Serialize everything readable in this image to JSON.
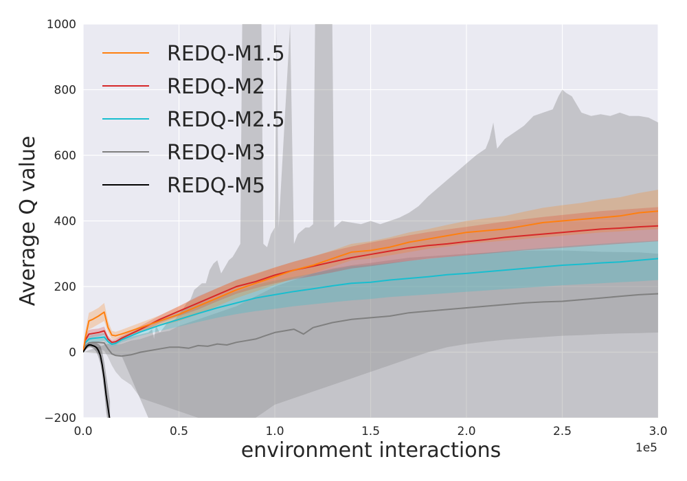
{
  "chart_data": {
    "type": "line",
    "xlabel": "environment interactions",
    "ylabel": "Average Q value",
    "x_offset_label": "1e5",
    "xlim": [
      0,
      3.0
    ],
    "ylim": [
      -200,
      1000
    ],
    "x_ticks": [
      "0.0",
      "0.5",
      "1.0",
      "1.5",
      "2.0",
      "2.5",
      "3.0"
    ],
    "x_tick_values": [
      0,
      0.5,
      1.0,
      1.5,
      2.0,
      2.5,
      3.0
    ],
    "y_ticks": [
      "−200",
      "0",
      "200",
      "400",
      "600",
      "800",
      "1000"
    ],
    "y_tick_values": [
      -200,
      0,
      200,
      400,
      600,
      800,
      1000
    ],
    "grid": true,
    "background": "#eaeaf2",
    "legend_position": "top-left",
    "series": [
      {
        "name": "REDQ-M1.5",
        "color": "#ff7f0e",
        "x": [
          0,
          0.01,
          0.03,
          0.05,
          0.08,
          0.11,
          0.13,
          0.15,
          0.17,
          0.2,
          0.3,
          0.4,
          0.5,
          0.6,
          0.7,
          0.8,
          0.9,
          1.0,
          1.1,
          1.2,
          1.3,
          1.4,
          1.5,
          1.6,
          1.7,
          1.8,
          1.9,
          2.0,
          2.1,
          2.2,
          2.3,
          2.4,
          2.5,
          2.6,
          2.7,
          2.8,
          2.9,
          3.0
        ],
        "y": [
          0,
          40,
          95,
          100,
          110,
          122,
          75,
          52,
          50,
          55,
          75,
          95,
          115,
          140,
          165,
          190,
          210,
          230,
          250,
          265,
          285,
          305,
          310,
          320,
          335,
          345,
          355,
          365,
          370,
          375,
          385,
          395,
          400,
          405,
          410,
          415,
          425,
          430
        ],
        "band_low": [
          0,
          20,
          70,
          75,
          85,
          95,
          60,
          40,
          40,
          45,
          62,
          80,
          95,
          115,
          140,
          165,
          185,
          205,
          225,
          240,
          260,
          280,
          285,
          295,
          305,
          315,
          322,
          330,
          335,
          340,
          345,
          350,
          355,
          360,
          365,
          368,
          372,
          375
        ],
        "band_high": [
          0,
          60,
          120,
          125,
          135,
          150,
          95,
          65,
          62,
          68,
          90,
          112,
          140,
          168,
          195,
          220,
          240,
          258,
          276,
          292,
          310,
          330,
          338,
          350,
          365,
          375,
          388,
          400,
          408,
          415,
          428,
          440,
          448,
          455,
          465,
          472,
          485,
          495
        ]
      },
      {
        "name": "REDQ-M2",
        "color": "#d62728",
        "x": [
          0,
          0.01,
          0.03,
          0.05,
          0.08,
          0.11,
          0.13,
          0.15,
          0.17,
          0.2,
          0.3,
          0.4,
          0.5,
          0.6,
          0.7,
          0.8,
          0.9,
          1.0,
          1.1,
          1.2,
          1.3,
          1.4,
          1.5,
          1.6,
          1.7,
          1.8,
          1.9,
          2.0,
          2.1,
          2.2,
          2.3,
          2.4,
          2.5,
          2.6,
          2.7,
          2.8,
          2.9,
          3.0
        ],
        "y": [
          0,
          35,
          55,
          57,
          60,
          65,
          40,
          30,
          32,
          42,
          70,
          100,
          125,
          150,
          175,
          200,
          215,
          235,
          250,
          262,
          275,
          288,
          298,
          308,
          318,
          325,
          330,
          337,
          343,
          350,
          355,
          360,
          365,
          370,
          375,
          378,
          382,
          385
        ],
        "band_low": [
          0,
          20,
          42,
          45,
          48,
          52,
          30,
          22,
          24,
          35,
          60,
          88,
          110,
          130,
          155,
          178,
          195,
          210,
          222,
          232,
          243,
          255,
          262,
          270,
          278,
          285,
          290,
          295,
          300,
          305,
          310,
          314,
          318,
          322,
          326,
          330,
          334,
          338
        ],
        "band_high": [
          0,
          50,
          68,
          70,
          72,
          78,
          50,
          38,
          40,
          50,
          80,
          112,
          140,
          170,
          195,
          220,
          238,
          258,
          276,
          292,
          308,
          322,
          334,
          345,
          356,
          366,
          374,
          382,
          390,
          398,
          405,
          412,
          418,
          424,
          430,
          434,
          438,
          442
        ]
      },
      {
        "name": "REDQ-M2.5",
        "color": "#17becf",
        "x": [
          0,
          0.01,
          0.03,
          0.05,
          0.08,
          0.11,
          0.13,
          0.15,
          0.17,
          0.2,
          0.3,
          0.4,
          0.5,
          0.6,
          0.7,
          0.8,
          0.9,
          1.0,
          1.1,
          1.2,
          1.3,
          1.4,
          1.5,
          1.6,
          1.7,
          1.8,
          1.9,
          2.0,
          2.1,
          2.2,
          2.3,
          2.4,
          2.5,
          2.6,
          2.7,
          2.8,
          2.9,
          3.0
        ],
        "y": [
          0,
          28,
          40,
          42,
          44,
          46,
          32,
          24,
          27,
          38,
          62,
          82,
          100,
          118,
          135,
          150,
          165,
          175,
          185,
          193,
          202,
          210,
          213,
          220,
          225,
          230,
          236,
          240,
          245,
          250,
          255,
          260,
          265,
          268,
          272,
          275,
          280,
          285
        ],
        "band_low": [
          0,
          18,
          28,
          30,
          32,
          35,
          24,
          18,
          20,
          30,
          50,
          65,
          78,
          92,
          105,
          116,
          125,
          132,
          140,
          146,
          152,
          158,
          162,
          168,
          172,
          176,
          180,
          184,
          188,
          192,
          196,
          200,
          204,
          207,
          210,
          213,
          216,
          220
        ],
        "band_high": [
          0,
          38,
          52,
          54,
          56,
          58,
          40,
          30,
          34,
          46,
          74,
          100,
          122,
          145,
          165,
          185,
          205,
          218,
          230,
          240,
          252,
          262,
          266,
          272,
          278,
          284,
          290,
          296,
          302,
          308,
          313,
          318,
          322,
          326,
          330,
          334,
          337,
          340
        ]
      },
      {
        "name": "REDQ-M3",
        "color": "#7f7f7f",
        "x": [
          0,
          0.01,
          0.03,
          0.05,
          0.08,
          0.11,
          0.13,
          0.15,
          0.17,
          0.2,
          0.25,
          0.3,
          0.35,
          0.4,
          0.45,
          0.5,
          0.55,
          0.6,
          0.65,
          0.7,
          0.75,
          0.8,
          0.85,
          0.9,
          0.95,
          1.0,
          1.05,
          1.1,
          1.15,
          1.2,
          1.3,
          1.4,
          1.5,
          1.6,
          1.7,
          1.8,
          1.9,
          2.0,
          2.1,
          2.2,
          2.3,
          2.4,
          2.5,
          2.6,
          2.7,
          2.8,
          2.9,
          3.0
        ],
        "y": [
          0,
          18,
          28,
          30,
          30,
          28,
          10,
          -5,
          -10,
          -12,
          -8,
          0,
          5,
          10,
          15,
          15,
          12,
          20,
          18,
          25,
          22,
          30,
          35,
          40,
          50,
          60,
          65,
          70,
          55,
          75,
          90,
          100,
          105,
          110,
          120,
          125,
          130,
          135,
          140,
          145,
          150,
          153,
          155,
          160,
          165,
          170,
          175,
          178
        ],
        "band_low": [
          0,
          5,
          15,
          15,
          10,
          5,
          -15,
          -40,
          -60,
          -80,
          -100,
          -140,
          -150,
          -160,
          -170,
          -180,
          -190,
          -200,
          -210,
          -200,
          -200,
          -200,
          -200,
          -200,
          -180,
          -160,
          -150,
          -140,
          -130,
          -120,
          -100,
          -80,
          -60,
          -40,
          -20,
          0,
          15,
          25,
          32,
          38,
          42,
          46,
          50,
          52,
          55,
          57,
          58,
          60
        ],
        "band_high": [
          0,
          25,
          40,
          42,
          45,
          42,
          25,
          20,
          22,
          25,
          35,
          40,
          50,
          60,
          65,
          80,
          90,
          100,
          110,
          120,
          130,
          140,
          155,
          170,
          185,
          200,
          210,
          220,
          230,
          240,
          255,
          265,
          272,
          280,
          288,
          292,
          296,
          300,
          303,
          306,
          309,
          310,
          310,
          308,
          306,
          305,
          304,
          300
        ],
        "spike_band": {
          "x": [
            0,
            0.2,
            0.34,
            0.36,
            0.37,
            0.38,
            0.4,
            0.42,
            0.44,
            0.46,
            0.48,
            0.5,
            0.52,
            0.54,
            0.56,
            0.58,
            0.6,
            0.62,
            0.64,
            0.66,
            0.68,
            0.7,
            0.72,
            0.74,
            0.76,
            0.78,
            0.8,
            0.82,
            0.83,
            0.84,
            0.93,
            0.94,
            0.96,
            0.98,
            1.0,
            1.01,
            1.02,
            1.08,
            1.1,
            1.12,
            1.14,
            1.16,
            1.18,
            1.2,
            1.21,
            1.3,
            1.31,
            1.35,
            1.4,
            1.45,
            1.5,
            1.55,
            1.6,
            1.65,
            1.7,
            1.75,
            1.8,
            1.85,
            1.9,
            1.95,
            2.0,
            2.05,
            2.1,
            2.12,
            2.14,
            2.16,
            2.2,
            2.25,
            2.3,
            2.35,
            2.4,
            2.45,
            2.48,
            2.5,
            2.52,
            2.55,
            2.6,
            2.65,
            2.7,
            2.75,
            2.8,
            2.85,
            2.9,
            2.95,
            3.0
          ],
          "high": [
            0,
            40,
            60,
            70,
            40,
            80,
            60,
            75,
            90,
            95,
            100,
            115,
            130,
            150,
            160,
            190,
            200,
            210,
            210,
            250,
            270,
            280,
            240,
            260,
            280,
            290,
            310,
            330,
            1000,
            1000,
            1000,
            330,
            320,
            360,
            380,
            1000,
            380,
            1000,
            330,
            360,
            370,
            380,
            380,
            390,
            1000,
            1000,
            380,
            400,
            395,
            390,
            400,
            390,
            400,
            410,
            425,
            445,
            475,
            500,
            525,
            550,
            575,
            600,
            620,
            650,
            700,
            620,
            650,
            670,
            690,
            720,
            730,
            740,
            780,
            800,
            790,
            780,
            730,
            720,
            725,
            720,
            730,
            720,
            720,
            715,
            700
          ],
          "low": [
            0,
            -10,
            -200,
            -200,
            -200,
            -200,
            -200,
            -200,
            -200,
            -200,
            -200,
            -200,
            -200,
            -200,
            -200,
            -200,
            -200,
            -200,
            -200,
            -200,
            -200,
            -200,
            -200,
            -200,
            -200,
            -200,
            -200,
            -200,
            -200,
            -200,
            -200,
            -200,
            -200,
            -200,
            -200,
            -200,
            -200,
            -200,
            -200,
            -200,
            -200,
            -200,
            -200,
            -200,
            -200,
            -200,
            -200,
            -200,
            -200,
            -200,
            -200,
            -200,
            -200,
            -200,
            -200,
            -200,
            -200,
            -200,
            -200,
            -200,
            -200,
            -200,
            -200,
            -200,
            -200,
            -200,
            -200,
            -200,
            -200,
            -200,
            -200,
            -200,
            -200,
            -200,
            -200,
            -200,
            -200,
            -200,
            -200,
            -200,
            -200,
            -200,
            -200,
            -200,
            -200
          ]
        }
      },
      {
        "name": "REDQ-M5",
        "color": "#000000",
        "x": [
          0,
          0.01,
          0.02,
          0.03,
          0.04,
          0.05,
          0.06,
          0.07,
          0.08,
          0.09,
          0.1,
          0.11,
          0.12,
          0.13,
          0.14
        ],
        "y": [
          0,
          10,
          18,
          22,
          22,
          20,
          18,
          14,
          5,
          -10,
          -40,
          -80,
          -130,
          -170,
          -210
        ],
        "band_low": [
          0,
          5,
          12,
          15,
          15,
          12,
          8,
          0,
          -15,
          -35,
          -70,
          -120,
          -180,
          -220,
          -260
        ],
        "band_high": [
          0,
          15,
          24,
          28,
          30,
          30,
          30,
          28,
          25,
          20,
          0,
          -30,
          -70,
          -110,
          -150
        ]
      }
    ]
  }
}
